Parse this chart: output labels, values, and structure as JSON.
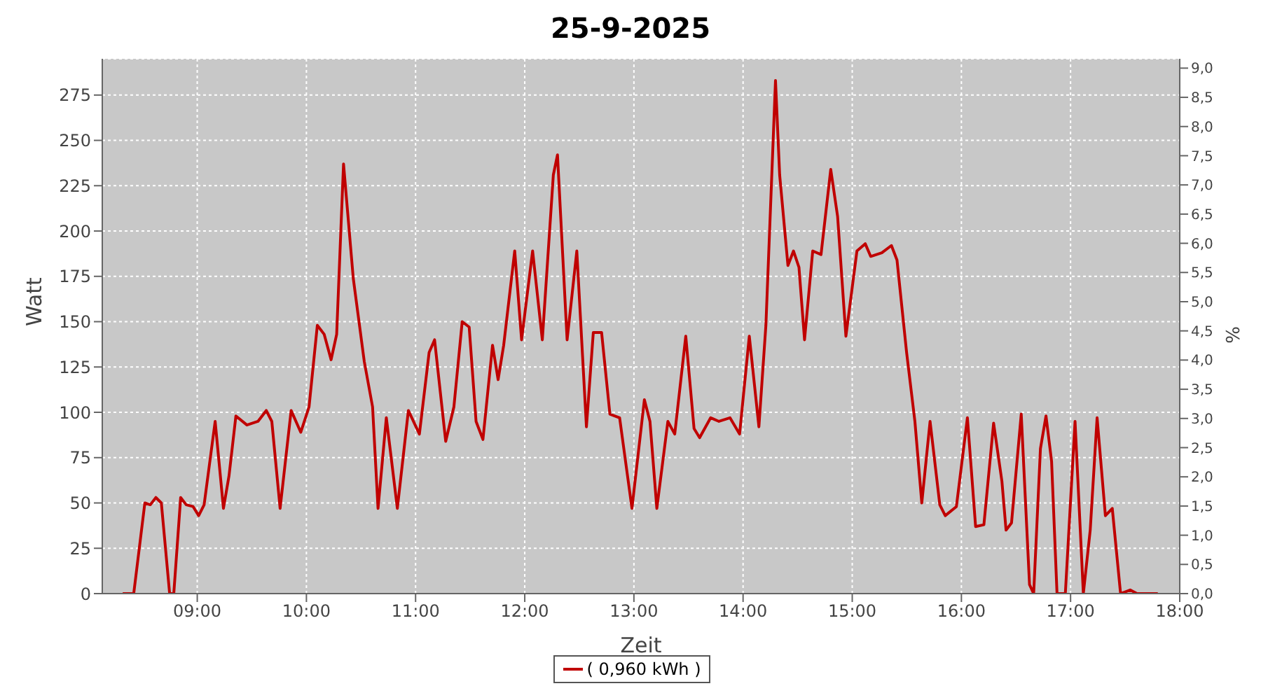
{
  "chart_data": {
    "type": "line",
    "title": "25-9-2025",
    "xlabel": "Zeit",
    "ylabel": "Watt",
    "y2label": "%",
    "xlim": [
      8.13,
      18
    ],
    "xticks": [
      {
        "value": 9,
        "label": "09:00"
      },
      {
        "value": 10,
        "label": "10:00"
      },
      {
        "value": 11,
        "label": "11:00"
      },
      {
        "value": 12,
        "label": "12:00"
      },
      {
        "value": 13,
        "label": "13:00"
      },
      {
        "value": 14,
        "label": "14:00"
      },
      {
        "value": 15,
        "label": "15:00"
      },
      {
        "value": 16,
        "label": "16:00"
      },
      {
        "value": 17,
        "label": "17:00"
      },
      {
        "value": 18,
        "label": "18:00"
      }
    ],
    "ylim": [
      0,
      295
    ],
    "yticks": [
      0,
      25,
      50,
      75,
      100,
      125,
      150,
      175,
      200,
      225,
      250,
      275
    ],
    "y2lim": [
      0,
      9.16
    ],
    "y2ticks": [
      {
        "value": 0,
        "label": "0,0"
      },
      {
        "value": 0.5,
        "label": "0,5"
      },
      {
        "value": 1,
        "label": "1,0"
      },
      {
        "value": 1.5,
        "label": "1,5"
      },
      {
        "value": 2,
        "label": "2,0"
      },
      {
        "value": 2.5,
        "label": "2,5"
      },
      {
        "value": 3,
        "label": "3,0"
      },
      {
        "value": 3.5,
        "label": "3,5"
      },
      {
        "value": 4,
        "label": "4,0"
      },
      {
        "value": 4.5,
        "label": "4,5"
      },
      {
        "value": 5,
        "label": "5,0"
      },
      {
        "value": 5.5,
        "label": "5,5"
      },
      {
        "value": 6,
        "label": "6,0"
      },
      {
        "value": 6.5,
        "label": "6,5"
      },
      {
        "value": 7,
        "label": "7,0"
      },
      {
        "value": 7.5,
        "label": "7,5"
      },
      {
        "value": 8,
        "label": "8,0"
      },
      {
        "value": 8.5,
        "label": "8,5"
      },
      {
        "value": 9,
        "label": "9,0"
      }
    ],
    "grid": true,
    "legend": "bottom",
    "line_style": "solid",
    "x": [
      8.317,
      8.418,
      8.52,
      8.57,
      8.621,
      8.671,
      8.747,
      8.785,
      8.848,
      8.899,
      8.962,
      9.013,
      9.063,
      9.164,
      9.24,
      9.291,
      9.354,
      9.455,
      9.556,
      9.632,
      9.683,
      9.759,
      9.86,
      9.948,
      10.024,
      10.1,
      10.163,
      10.226,
      10.277,
      10.34,
      10.429,
      10.53,
      10.606,
      10.656,
      10.732,
      10.833,
      10.934,
      11.035,
      11.124,
      11.174,
      11.276,
      11.351,
      11.427,
      11.491,
      11.554,
      11.617,
      11.705,
      11.756,
      11.807,
      11.908,
      11.971,
      12.072,
      12.161,
      12.262,
      12.3,
      12.388,
      12.477,
      12.565,
      12.628,
      12.704,
      12.78,
      12.869,
      12.982,
      13.096,
      13.147,
      13.21,
      13.311,
      13.374,
      13.475,
      13.551,
      13.602,
      13.703,
      13.779,
      13.88,
      13.968,
      14.057,
      14.145,
      14.209,
      14.297,
      14.335,
      14.411,
      14.462,
      14.512,
      14.563,
      14.638,
      14.714,
      14.803,
      14.866,
      14.942,
      15.043,
      15.119,
      15.169,
      15.271,
      15.359,
      15.41,
      15.498,
      15.574,
      15.637,
      15.713,
      15.802,
      15.852,
      15.954,
      16.055,
      16.13,
      16.206,
      16.295,
      16.371,
      16.409,
      16.459,
      16.548,
      16.624,
      16.662,
      16.724,
      16.775,
      16.826,
      16.876,
      16.952,
      17.041,
      17.117,
      17.18,
      17.243,
      17.319,
      17.382,
      17.458,
      17.546,
      17.609,
      17.799
    ],
    "series": [
      {
        "name": "( 0,960 kWh )",
        "color": "#c00000",
        "values": [
          0,
          0,
          50,
          49,
          53,
          50,
          0,
          0,
          53,
          49,
          48,
          43,
          49,
          95,
          47,
          65,
          98,
          93,
          95,
          101,
          95,
          47,
          101,
          89,
          103,
          148,
          143,
          129,
          143,
          237,
          174,
          128,
          103,
          47,
          97,
          47,
          101,
          88,
          133,
          140,
          84,
          103,
          150,
          147,
          95,
          85,
          137,
          118,
          137,
          189,
          140,
          189,
          140,
          231,
          242,
          140,
          189,
          92,
          144,
          144,
          99,
          97,
          47,
          107,
          95,
          47,
          95,
          88,
          142,
          91,
          86,
          97,
          95,
          97,
          88,
          142,
          92,
          148,
          283,
          231,
          181,
          189,
          180,
          140,
          189,
          187,
          234,
          208,
          142,
          189,
          193,
          186,
          188,
          192,
          184,
          133,
          95,
          50,
          95,
          49,
          43,
          48,
          97,
          37,
          38,
          94,
          62,
          35,
          39,
          99,
          5,
          0,
          80,
          98,
          73,
          0,
          0,
          95,
          0,
          35,
          97,
          43,
          47,
          0,
          2,
          0,
          0
        ]
      }
    ]
  }
}
